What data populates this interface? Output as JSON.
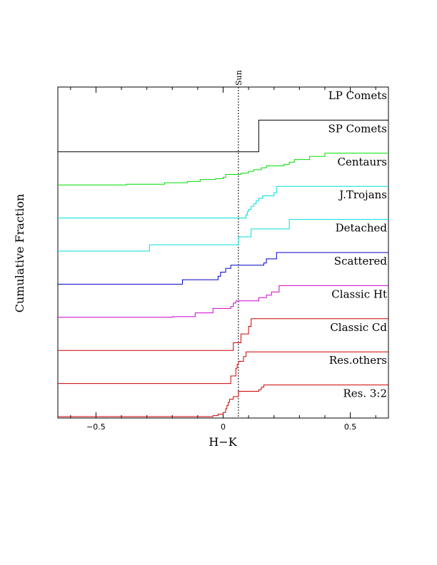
{
  "chart_data": {
    "type": "line",
    "xlabel": "H−K",
    "ylabel": "Cumulative Fraction",
    "xlim": [
      -0.65,
      0.65
    ],
    "x_ticks": [
      {
        "value": -0.5,
        "label": "−0.5"
      },
      {
        "value": 0,
        "label": "0"
      },
      {
        "value": 0.5,
        "label": "0.5"
      }
    ],
    "reference_line": {
      "x": 0.06,
      "label": "Sun",
      "style": "dotted"
    },
    "series": [
      {
        "name": "LP Comets",
        "color": "#000000",
        "steps": []
      },
      {
        "name": "SP Comets",
        "color": "#000000",
        "steps": [
          [
            0.14,
            1.0
          ]
        ]
      },
      {
        "name": "Centaurs",
        "color": "#00dd00",
        "steps": [
          [
            -0.38,
            0.02
          ],
          [
            -0.23,
            0.07
          ],
          [
            -0.14,
            0.11
          ],
          [
            -0.09,
            0.17
          ],
          [
            -0.03,
            0.2
          ],
          [
            0,
            0.24
          ],
          [
            0.01,
            0.33
          ],
          [
            0.07,
            0.37
          ],
          [
            0.1,
            0.43
          ],
          [
            0.12,
            0.48
          ],
          [
            0.15,
            0.54
          ],
          [
            0.17,
            0.6
          ],
          [
            0.24,
            0.65
          ],
          [
            0.26,
            0.72
          ],
          [
            0.28,
            0.8
          ],
          [
            0.34,
            0.9
          ],
          [
            0.4,
            1.0
          ]
        ]
      },
      {
        "name": "J.Trojans",
        "color": "#00dddd",
        "steps": [
          [
            0.09,
            0.1
          ],
          [
            0.095,
            0.2
          ],
          [
            0.1,
            0.27
          ],
          [
            0.11,
            0.37
          ],
          [
            0.12,
            0.45
          ],
          [
            0.13,
            0.54
          ],
          [
            0.14,
            0.62
          ],
          [
            0.155,
            0.7
          ],
          [
            0.2,
            0.8
          ],
          [
            0.21,
            1.0
          ]
        ]
      },
      {
        "name": "Detached",
        "color": "#00dddd",
        "steps": [
          [
            -0.29,
            0.2
          ],
          [
            0.06,
            0.45
          ],
          [
            0.11,
            0.7
          ],
          [
            0.26,
            1.0
          ]
        ]
      },
      {
        "name": "Scattered",
        "color": "#0000cc",
        "steps": [
          [
            -0.16,
            0.14
          ],
          [
            -0.02,
            0.25
          ],
          [
            -0.01,
            0.38
          ],
          [
            0.01,
            0.5
          ],
          [
            0.03,
            0.6
          ],
          [
            0.16,
            0.67
          ],
          [
            0.17,
            0.8
          ],
          [
            0.21,
            1.0
          ]
        ]
      },
      {
        "name": "Classic Ht",
        "color": "#cc00cc",
        "steps": [
          [
            -0.2,
            0.02
          ],
          [
            -0.11,
            0.14
          ],
          [
            -0.04,
            0.28
          ],
          [
            0.03,
            0.34
          ],
          [
            0.04,
            0.45
          ],
          [
            0.05,
            0.52
          ],
          [
            0.14,
            0.62
          ],
          [
            0.17,
            0.7
          ],
          [
            0.19,
            0.8
          ],
          [
            0.22,
            1.0
          ]
        ]
      },
      {
        "name": "Classic Cd",
        "color": "#cc0000",
        "steps": [
          [
            0.04,
            0.24
          ],
          [
            0.07,
            0.52
          ],
          [
            0.1,
            0.76
          ],
          [
            0.11,
            1.0
          ]
        ]
      },
      {
        "name": "Res.others",
        "color": "#cc0000",
        "steps": [
          [
            0.03,
            0.24
          ],
          [
            0.05,
            0.48
          ],
          [
            0.055,
            0.6
          ],
          [
            0.06,
            0.7
          ],
          [
            0.08,
            0.85
          ],
          [
            0.09,
            1.0
          ]
        ]
      },
      {
        "name": "Res. 3:2",
        "color": "#cc0000",
        "steps": [
          [
            -0.04,
            0.03
          ],
          [
            -0.02,
            0.08
          ],
          [
            0,
            0.13
          ],
          [
            0.01,
            0.25
          ],
          [
            0.015,
            0.35
          ],
          [
            0.02,
            0.45
          ],
          [
            0.025,
            0.55
          ],
          [
            0.04,
            0.63
          ],
          [
            0.06,
            0.8
          ],
          [
            0.14,
            0.85
          ],
          [
            0.15,
            0.93
          ],
          [
            0.16,
            1.0
          ]
        ]
      }
    ]
  }
}
